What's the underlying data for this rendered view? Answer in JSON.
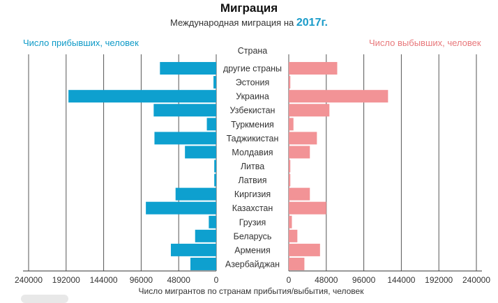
{
  "chart_data": {
    "type": "bar",
    "title": "Миграция",
    "subtitle_prefix": "Международная миграция на",
    "subtitle_year": "2017г.",
    "category_axis_label": "Страна",
    "xlabel": "Число мигрантов по странам прибытия/выбытия, человек",
    "categories": [
      "другие страны",
      "Эстония",
      "Украина",
      "Узбекистан",
      "Туркмения",
      "Таджикистан",
      "Молдавия",
      "Литва",
      "Латвия",
      "Киргизия",
      "Казахстан",
      "Грузия",
      "Беларусь",
      "Армения",
      "Азербайджан"
    ],
    "series": [
      {
        "name": "Число прибывших, человек",
        "side": "left",
        "color": "#0ea0cf",
        "values": [
          72000,
          3500,
          189000,
          80000,
          12000,
          79000,
          40000,
          2500,
          2500,
          52000,
          90000,
          9500,
          27000,
          58000,
          33000
        ]
      },
      {
        "name": "Число выбывших, человек",
        "side": "right",
        "color": "#f29396",
        "values": [
          62000,
          2000,
          127000,
          52000,
          6000,
          36000,
          27000,
          2000,
          2000,
          27000,
          48000,
          4000,
          11000,
          40000,
          20000
        ]
      }
    ],
    "xlim": [
      0,
      240000
    ],
    "ticks_left": [
      "240000",
      "192000",
      "144000",
      "96000",
      "48000",
      "0"
    ],
    "ticks_right": [
      "0",
      "48000",
      "96000",
      "144000",
      "192000",
      "240000"
    ],
    "tick_values": [
      0,
      48000,
      96000,
      144000,
      192000,
      240000
    ],
    "grid": true
  }
}
